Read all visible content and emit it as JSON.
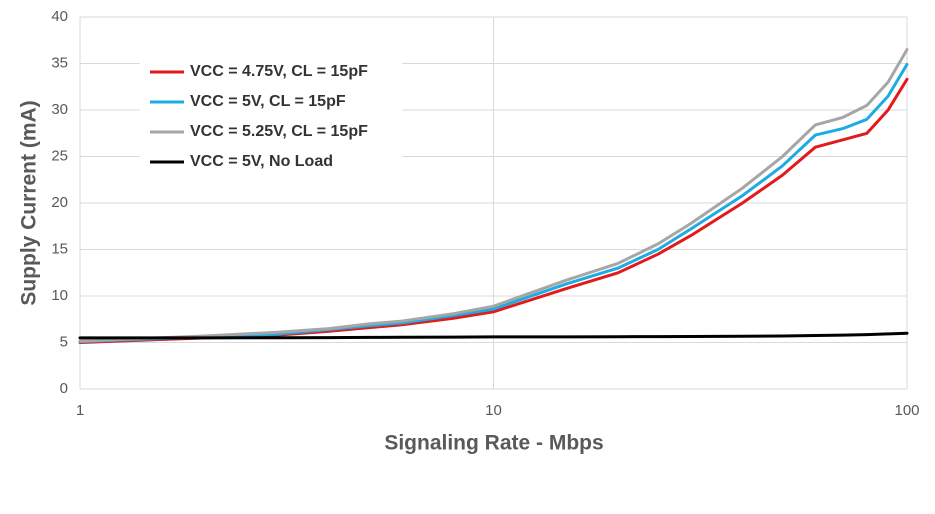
{
  "chart_data": {
    "type": "line",
    "xlabel": "Signaling Rate - Mbps",
    "ylabel": "Supply Current (mA)",
    "xscale": "log",
    "x": [
      1,
      2,
      3,
      4,
      5,
      6,
      8,
      10,
      15,
      20,
      25,
      30,
      40,
      50,
      60,
      70,
      80,
      90,
      100
    ],
    "xlim": [
      1,
      100
    ],
    "xticks": [
      1,
      10,
      100
    ],
    "ylim": [
      0,
      40
    ],
    "yticks": [
      0,
      5,
      10,
      15,
      20,
      25,
      30,
      35,
      40
    ],
    "grid": true,
    "legend": "upper left",
    "series": [
      {
        "name": "VCC = 4.75V, CL = 15pF",
        "color": "#e31a1c",
        "values": [
          5.0,
          5.5,
          5.8,
          6.2,
          6.6,
          6.9,
          7.6,
          8.3,
          10.8,
          12.5,
          14.5,
          16.5,
          20.0,
          23.0,
          26.0,
          26.8,
          27.5,
          30.0,
          33.3
        ]
      },
      {
        "name": "VCC = 5V, CL = 15pF",
        "color": "#1cabe2",
        "values": [
          5.1,
          5.6,
          5.9,
          6.4,
          6.8,
          7.1,
          7.9,
          8.6,
          11.3,
          13.0,
          15.0,
          17.2,
          20.8,
          24.0,
          27.3,
          28.0,
          29.0,
          31.5,
          34.9
        ]
      },
      {
        "name": "VCC = 5.25V, CL = 15pF",
        "color": "#a6a6a6",
        "values": [
          5.15,
          5.7,
          6.1,
          6.5,
          7.0,
          7.3,
          8.1,
          8.9,
          11.7,
          13.5,
          15.6,
          17.8,
          21.6,
          25.0,
          28.4,
          29.2,
          30.5,
          33.0,
          36.5
        ]
      },
      {
        "name": "VCC = 5V, No Load",
        "color": "#000000",
        "values": [
          5.5,
          5.5,
          5.52,
          5.53,
          5.55,
          5.56,
          5.58,
          5.6,
          5.6,
          5.62,
          5.63,
          5.65,
          5.68,
          5.7,
          5.75,
          5.8,
          5.85,
          5.92,
          6.0
        ]
      }
    ]
  }
}
